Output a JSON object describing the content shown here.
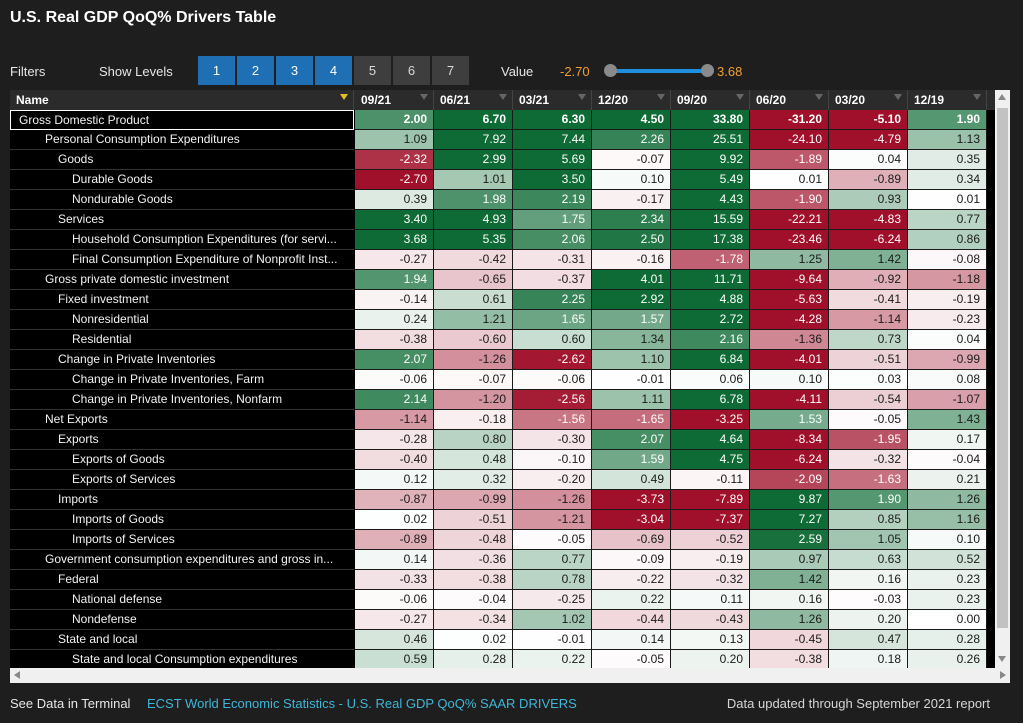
{
  "title": "U.S. Real GDP QoQ% Drivers Table",
  "filters": {
    "filters_label": "Filters",
    "show_levels_label": "Show Levels",
    "levels": [
      {
        "label": "1",
        "active": true
      },
      {
        "label": "2",
        "active": true
      },
      {
        "label": "3",
        "active": true
      },
      {
        "label": "4",
        "active": true
      },
      {
        "label": "5",
        "active": false
      },
      {
        "label": "6",
        "active": false
      },
      {
        "label": "7",
        "active": false
      }
    ],
    "value_label": "Value",
    "value_min": "-2.70",
    "value_max": "3.68"
  },
  "table": {
    "name_header": "Name",
    "columns": [
      "09/21",
      "06/21",
      "03/21",
      "12/20",
      "09/20",
      "06/20",
      "03/20",
      "12/19"
    ],
    "rows": [
      {
        "name": "Gross Domestic Product",
        "level": 0,
        "values": [
          "2.00",
          "6.70",
          "6.30",
          "4.50",
          "33.80",
          "-31.20",
          "-5.10",
          "1.90"
        ]
      },
      {
        "name": "Personal Consumption Expenditures",
        "level": 1,
        "values": [
          "1.09",
          "7.92",
          "7.44",
          "2.26",
          "25.51",
          "-24.10",
          "-4.79",
          "1.13"
        ]
      },
      {
        "name": "Goods",
        "level": 2,
        "values": [
          "-2.32",
          "2.99",
          "5.69",
          "-0.07",
          "9.92",
          "-1.89",
          "0.04",
          "0.35"
        ]
      },
      {
        "name": "Durable Goods",
        "level": 3,
        "values": [
          "-2.70",
          "1.01",
          "3.50",
          "0.10",
          "5.49",
          "0.01",
          "-0.89",
          "0.34"
        ]
      },
      {
        "name": "Nondurable Goods",
        "level": 3,
        "values": [
          "0.39",
          "1.98",
          "2.19",
          "-0.17",
          "4.43",
          "-1.90",
          "0.93",
          "0.01"
        ]
      },
      {
        "name": "Services",
        "level": 2,
        "values": [
          "3.40",
          "4.93",
          "1.75",
          "2.34",
          "15.59",
          "-22.21",
          "-4.83",
          "0.77"
        ]
      },
      {
        "name": "Household Consumption Expenditures (for servi...",
        "level": 3,
        "values": [
          "3.68",
          "5.35",
          "2.06",
          "2.50",
          "17.38",
          "-23.46",
          "-6.24",
          "0.86"
        ]
      },
      {
        "name": "Final Consumption Expenditure of Nonprofit Inst...",
        "level": 3,
        "values": [
          "-0.27",
          "-0.42",
          "-0.31",
          "-0.16",
          "-1.78",
          "1.25",
          "1.42",
          "-0.08"
        ]
      },
      {
        "name": "Gross private domestic investment",
        "level": 1,
        "values": [
          "1.94",
          "-0.65",
          "-0.37",
          "4.01",
          "11.71",
          "-9.64",
          "-0.92",
          "-1.18"
        ]
      },
      {
        "name": "Fixed investment",
        "level": 2,
        "values": [
          "-0.14",
          "0.61",
          "2.25",
          "2.92",
          "4.88",
          "-5.63",
          "-0.41",
          "-0.19"
        ]
      },
      {
        "name": "Nonresidential",
        "level": 3,
        "values": [
          "0.24",
          "1.21",
          "1.65",
          "1.57",
          "2.72",
          "-4.28",
          "-1.14",
          "-0.23"
        ]
      },
      {
        "name": "Residential",
        "level": 3,
        "values": [
          "-0.38",
          "-0.60",
          "0.60",
          "1.34",
          "2.16",
          "-1.36",
          "0.73",
          "0.04"
        ]
      },
      {
        "name": "Change in Private Inventories",
        "level": 2,
        "values": [
          "2.07",
          "-1.26",
          "-2.62",
          "1.10",
          "6.84",
          "-4.01",
          "-0.51",
          "-0.99"
        ]
      },
      {
        "name": "Change in Private Inventories, Farm",
        "level": 3,
        "values": [
          "-0.06",
          "-0.07",
          "-0.06",
          "-0.01",
          "0.06",
          "0.10",
          "0.03",
          "0.08"
        ]
      },
      {
        "name": "Change in Private Inventories, Nonfarm",
        "level": 3,
        "values": [
          "2.14",
          "-1.20",
          "-2.56",
          "1.11",
          "6.78",
          "-4.11",
          "-0.54",
          "-1.07"
        ]
      },
      {
        "name": "Net Exports",
        "level": 1,
        "values": [
          "-1.14",
          "-0.18",
          "-1.56",
          "-1.65",
          "-3.25",
          "1.53",
          "-0.05",
          "1.43"
        ]
      },
      {
        "name": "Exports",
        "level": 2,
        "values": [
          "-0.28",
          "0.80",
          "-0.30",
          "2.07",
          "4.64",
          "-8.34",
          "-1.95",
          "0.17"
        ]
      },
      {
        "name": "Exports of Goods",
        "level": 3,
        "values": [
          "-0.40",
          "0.48",
          "-0.10",
          "1.59",
          "4.75",
          "-6.24",
          "-0.32",
          "-0.04"
        ]
      },
      {
        "name": "Exports of Services",
        "level": 3,
        "values": [
          "0.12",
          "0.32",
          "-0.20",
          "0.49",
          "-0.11",
          "-2.09",
          "-1.63",
          "0.21"
        ]
      },
      {
        "name": "Imports",
        "level": 2,
        "values": [
          "-0.87",
          "-0.99",
          "-1.26",
          "-3.73",
          "-7.89",
          "9.87",
          "1.90",
          "1.26"
        ]
      },
      {
        "name": "Imports of Goods",
        "level": 3,
        "values": [
          "0.02",
          "-0.51",
          "-1.21",
          "-3.04",
          "-7.37",
          "7.27",
          "0.85",
          "1.16"
        ]
      },
      {
        "name": "Imports of Services",
        "level": 3,
        "values": [
          "-0.89",
          "-0.48",
          "-0.05",
          "-0.69",
          "-0.52",
          "2.59",
          "1.05",
          "0.10"
        ]
      },
      {
        "name": "Government consumption expenditures and gross in...",
        "level": 1,
        "values": [
          "0.14",
          "-0.36",
          "0.77",
          "-0.09",
          "-0.19",
          "0.97",
          "0.63",
          "0.52"
        ]
      },
      {
        "name": "Federal",
        "level": 2,
        "values": [
          "-0.33",
          "-0.38",
          "0.78",
          "-0.22",
          "-0.32",
          "1.42",
          "0.16",
          "0.23"
        ]
      },
      {
        "name": "National defense",
        "level": 3,
        "values": [
          "-0.06",
          "-0.04",
          "-0.25",
          "0.22",
          "0.11",
          "0.16",
          "-0.03",
          "0.23"
        ]
      },
      {
        "name": "Nondefense",
        "level": 3,
        "values": [
          "-0.27",
          "-0.34",
          "1.02",
          "-0.44",
          "-0.43",
          "1.26",
          "0.20",
          "0.00"
        ]
      },
      {
        "name": "State and local",
        "level": 2,
        "values": [
          "0.46",
          "0.02",
          "-0.01",
          "0.14",
          "0.13",
          "-0.45",
          "0.47",
          "0.28"
        ]
      },
      {
        "name": "State and local Consumption expenditures",
        "level": 3,
        "values": [
          "0.59",
          "0.28",
          "0.22",
          "-0.05",
          "0.20",
          "-0.38",
          "0.18",
          "0.26"
        ]
      }
    ]
  },
  "footer": {
    "see_data": "See Data in Terminal",
    "link": "ECST World Economic Statistics - U.S. Real GDP QoQ% SAAR DRIVERS",
    "updated": "Data updated through September 2021 report"
  },
  "colors": {
    "level_active": "#1f6fb5",
    "value_range_text": "#f0a030",
    "link": "#3fb6d8",
    "positive": "#0e6b35",
    "negative": "#a0102a"
  }
}
